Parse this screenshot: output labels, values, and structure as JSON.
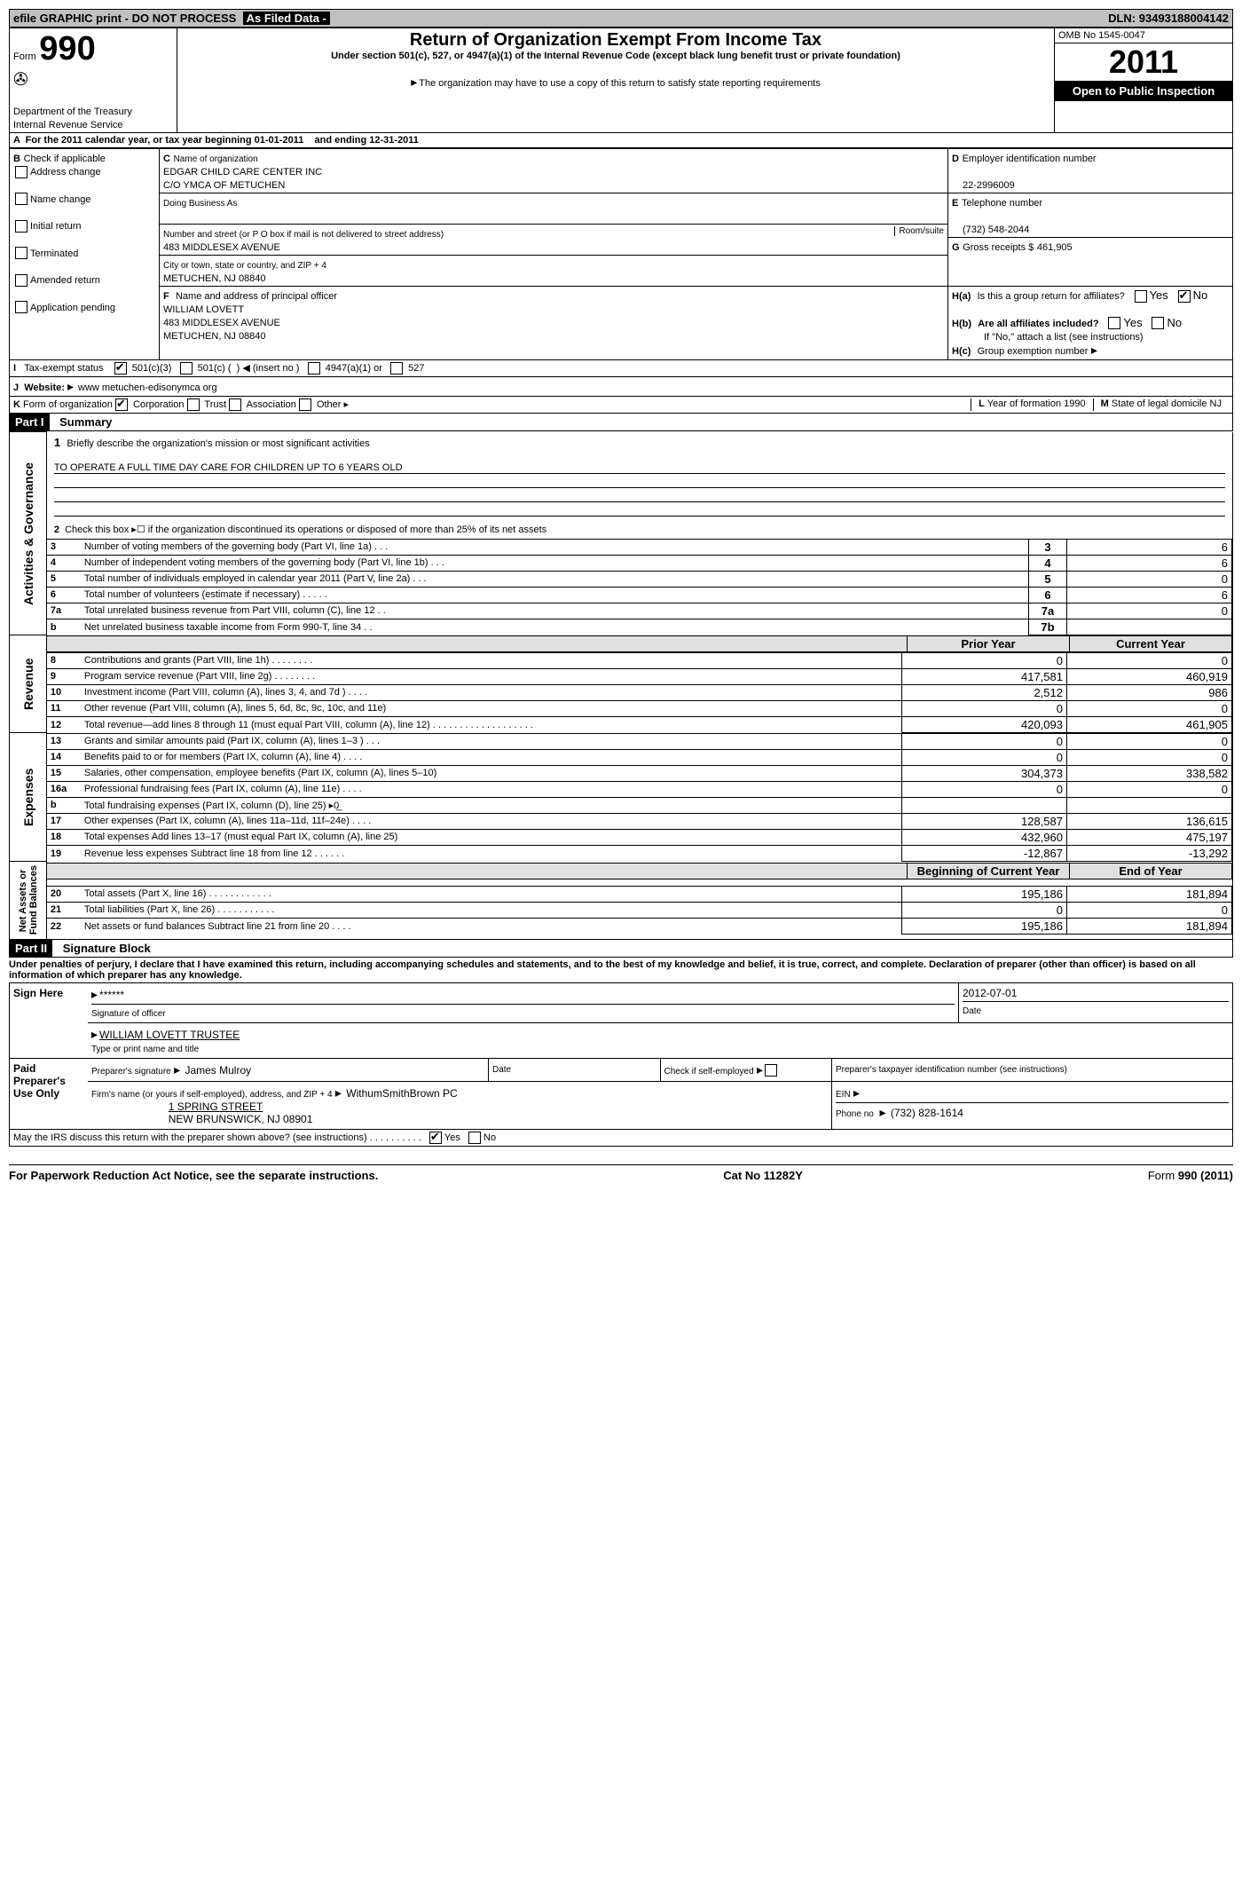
{
  "topbar": {
    "left": "efile GRAPHIC print - DO NOT PROCESS",
    "mid": "As Filed Data -",
    "right_label": "DLN:",
    "right_val": "93493188004142"
  },
  "header": {
    "form_label": "Form",
    "form_num": "990",
    "dept1": "Department of the Treasury",
    "dept2": "Internal Revenue Service",
    "title": "Return of Organization Exempt From Income Tax",
    "subtitle": "Under section 501(c), 527, or 4947(a)(1) of the Internal Revenue Code (except black lung benefit trust or private foundation)",
    "note": "The organization may have to use a copy of this return to satisfy state reporting requirements",
    "omb": "OMB No  1545-0047",
    "year": "2011",
    "open": "Open to Public Inspection"
  },
  "A": {
    "line": "For the 2011 calendar year, or tax year beginning 01-01-2011",
    "end": "and ending 12-31-2011"
  },
  "B": {
    "label": "Check if applicable",
    "items": [
      "Address change",
      "Name change",
      "Initial return",
      "Terminated",
      "Amended return",
      "Application pending"
    ]
  },
  "C": {
    "name_label": "Name of organization",
    "name": "EDGAR CHILD CARE CENTER INC",
    "co": "C/O YMCA OF METUCHEN",
    "dba_label": "Doing Business As",
    "street_label": "Number and street (or P O  box if mail is not delivered to street address)",
    "room_label": "Room/suite",
    "street": "483 MIDDLESEX AVENUE",
    "city_label": "City or town, state or country, and ZIP + 4",
    "city": "METUCHEN, NJ  08840"
  },
  "D": {
    "label": "Employer identification number",
    "val": "22-2996009"
  },
  "E": {
    "label": "Telephone number",
    "val": "(732) 548-2044"
  },
  "G": {
    "label": "Gross receipts $",
    "val": "461,905"
  },
  "F": {
    "label": "Name and address of principal officer",
    "name": "WILLIAM LOVETT",
    "street": "483 MIDDLESEX AVENUE",
    "city": "METUCHEN, NJ  08840"
  },
  "H": {
    "a": "Is this a group return for affiliates?",
    "b": "Are all affiliates included?",
    "b_note": "If \"No,\" attach a list  (see instructions)",
    "c": "Group exemption number"
  },
  "I": {
    "label": "Tax-exempt status"
  },
  "J": {
    "label": "Website:",
    "val": "www metuchen-edisonymca org"
  },
  "K": {
    "label": "Form of organization"
  },
  "L": {
    "label": "Year of formation  1990"
  },
  "M": {
    "label": "State of legal domicile  NJ"
  },
  "part1": {
    "title": "Part I",
    "sub": "Summary",
    "mission_label": "Briefly describe the organization's mission or most significant activities",
    "mission": "TO OPERATE A FULL TIME DAY CARE FOR CHILDREN UP TO 6 YEARS OLD",
    "line2": "Check this box ▸☐ if the organization discontinued its operations or disposed of more than 25% of its net assets",
    "rows_a": [
      {
        "n": "3",
        "t": "Number of voting members of the governing body (Part VI, line 1a)   .    .    .",
        "b": "3",
        "v": "6"
      },
      {
        "n": "4",
        "t": "Number of independent voting members of the governing body (Part VI, line 1b)   .    .    .",
        "b": "4",
        "v": "6"
      },
      {
        "n": "5",
        "t": "Total number of individuals employed in calendar year 2011 (Part V, line 2a)   .    .    .",
        "b": "5",
        "v": "0"
      },
      {
        "n": "6",
        "t": "Total number of volunteers (estimate if necessary)   .    .    .    .    .",
        "b": "6",
        "v": "6"
      },
      {
        "n": "7a",
        "t": "Total unrelated business revenue from Part VIII, column (C), line 12   .    .",
        "b": "7a",
        "v": "0"
      },
      {
        "n": "b",
        "t": "Net unrelated business taxable income from Form 990-T, line 34   .    .",
        "b": "7b",
        "v": ""
      }
    ],
    "headers": {
      "prior": "Prior Year",
      "curr": "Current Year"
    },
    "rows_rev": [
      {
        "n": "8",
        "t": "Contributions and grants (Part VIII, line 1h)   .    .    .    .    .    .    .    .",
        "p": "0",
        "c": "0"
      },
      {
        "n": "9",
        "t": "Program service revenue (Part VIII, line 2g)   .    .    .    .    .    .    .    .",
        "p": "417,581",
        "c": "460,919"
      },
      {
        "n": "10",
        "t": "Investment income (Part VIII, column (A), lines 3, 4, and 7d )   .    .    .    .",
        "p": "2,512",
        "c": "986"
      },
      {
        "n": "11",
        "t": "Other revenue (Part VIII, column (A), lines 5, 6d, 8c, 9c, 10c, and 11e)",
        "p": "0",
        "c": "0"
      },
      {
        "n": "12",
        "t": "Total revenue—add lines 8 through 11 (must equal Part VIII, column (A), line 12) .    .    .    .    .    .    .    .    .    .    .    .    .    .    .    .    .    .    .",
        "p": "420,093",
        "c": "461,905"
      }
    ],
    "rows_exp": [
      {
        "n": "13",
        "t": "Grants and similar amounts paid (Part IX, column (A), lines 1–3 )   .    .    .",
        "p": "0",
        "c": "0"
      },
      {
        "n": "14",
        "t": "Benefits paid to or for members (Part IX, column (A), line 4)   .    .    .    .",
        "p": "0",
        "c": "0"
      },
      {
        "n": "15",
        "t": "Salaries, other compensation, employee benefits (Part IX, column (A), lines 5–10)",
        "p": "304,373",
        "c": "338,582"
      },
      {
        "n": "16a",
        "t": "Professional fundraising fees (Part IX, column (A), line 11e)   .    .    .    .",
        "p": "0",
        "c": "0"
      },
      {
        "n": "b",
        "t": "Total fundraising expenses (Part IX, column (D), line 25) ▸0̲",
        "p": "",
        "c": ""
      },
      {
        "n": "17",
        "t": "Other expenses (Part IX, column (A), lines 11a–11d, 11f–24e)   .    .    .    .",
        "p": "128,587",
        "c": "136,615"
      },
      {
        "n": "18",
        "t": "Total expenses  Add lines 13–17 (must equal Part IX, column (A), line 25)",
        "p": "432,960",
        "c": "475,197"
      },
      {
        "n": "19",
        "t": "Revenue less expenses  Subtract line 18 from line 12   .    .    .    .    .    .",
        "p": "-12,867",
        "c": "-13,292"
      }
    ],
    "headers2": {
      "prior": "Beginning of Current Year",
      "curr": "End of Year"
    },
    "rows_net": [
      {
        "n": "20",
        "t": "Total assets (Part X, line 16)   .    .    .    .    .    .    .    .    .    .    .    .",
        "p": "195,186",
        "c": "181,894"
      },
      {
        "n": "21",
        "t": "Total liabilities (Part X, line 26)   .    .    .    .    .    .    .    .    .    .    .",
        "p": "0",
        "c": "0"
      },
      {
        "n": "22",
        "t": "Net assets or fund balances  Subtract line 21 from line 20   .    .    .    .",
        "p": "195,186",
        "c": "181,894"
      }
    ]
  },
  "part2": {
    "title": "Part II",
    "sub": "Signature Block",
    "decl": "Under penalties of perjury, I declare that I have examined this return, including accompanying schedules and statements, and to the best of my knowledge and belief, it is true, correct, and complete. Declaration of preparer (other than officer) is based on all information of which preparer has any knowledge.",
    "sign_here": "Sign Here",
    "sig_stars": "******",
    "sig_label": "Signature of officer",
    "sig_date": "2012-07-01",
    "date_label": "Date",
    "officer": "WILLIAM LOVETT TRUSTEE",
    "officer_label": "Type or print name and title",
    "paid": "Paid Preparer's Use Only",
    "prep_sig_label": "Preparer's signature",
    "prep_name": "James Mulroy",
    "self_label": "Check if self-employed",
    "ptin_label": "Preparer's taxpayer identification number (see instructions)",
    "firm_label": "Firm's name (or yours if self-employed), address, and ZIP + 4",
    "firm": "WithumSmithBrown PC",
    "firm_addr1": "1 SPRING STREET",
    "firm_addr2": "NEW BRUNSWICK, NJ  08901",
    "ein_label": "EIN",
    "phone_label": "Phone no",
    "phone": "(732) 828-1614",
    "discuss": "May the IRS discuss this return with the preparer shown above? (see instructions)   .    .    .    .    .    .    .    .    .    ."
  },
  "footer": {
    "left": "For Paperwork Reduction Act Notice, see the separate instructions.",
    "mid": "Cat No  11282Y",
    "right": "Form 990 (2011)"
  }
}
